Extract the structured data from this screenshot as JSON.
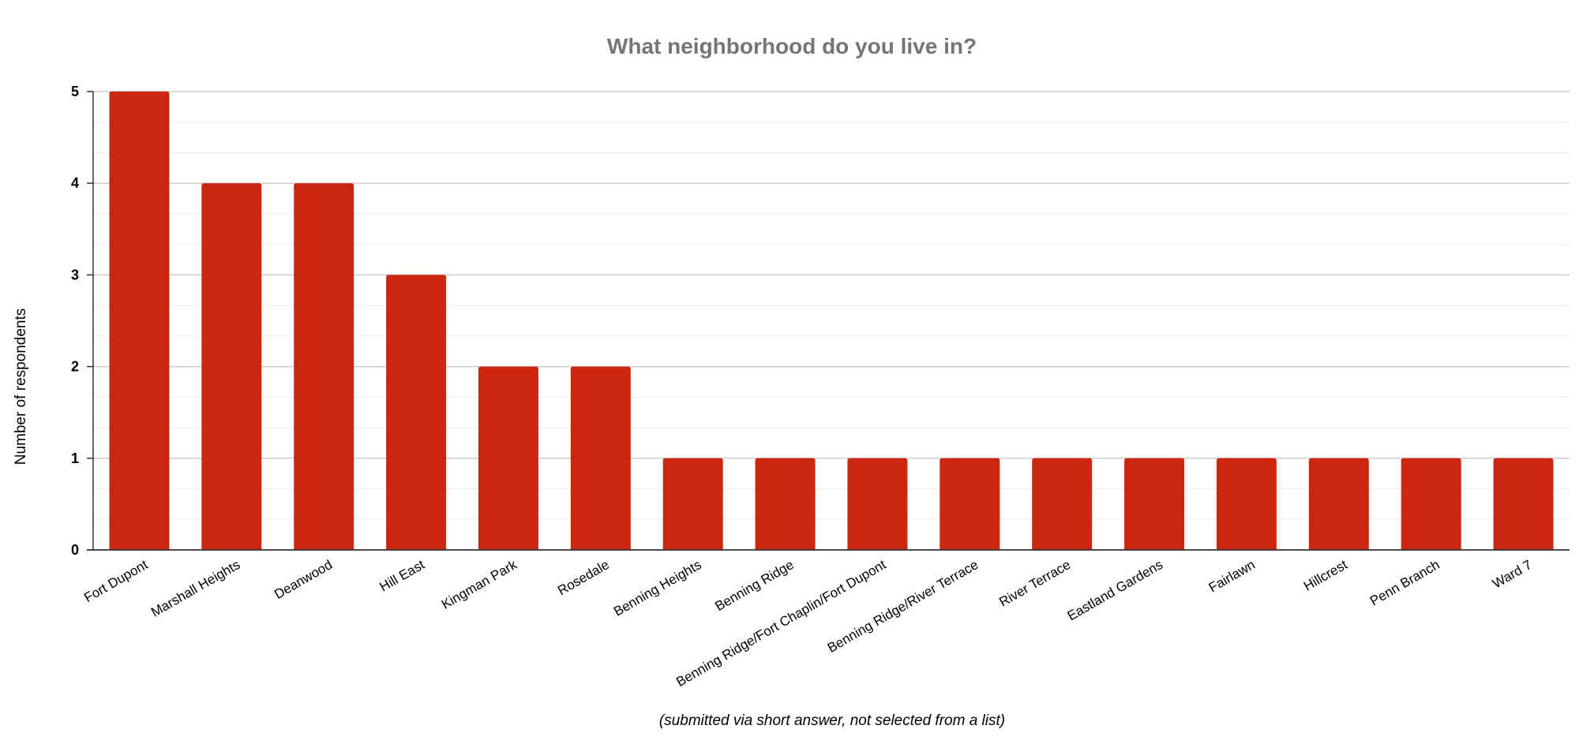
{
  "chart_data": {
    "type": "bar",
    "title": "What neighborhood do you live in?",
    "xlabel": "(submitted via short answer, not selected from a list)",
    "ylabel": "Number of respondents",
    "categories": [
      "Fort Dupont",
      "Marshall Heights",
      "Deanwood",
      "Hill East",
      "Kingman Park",
      "Rosedale",
      "Benning Heights",
      "Benning Ridge",
      "Benning Ridge/Fort Chaplin/Fort Dupont",
      "Benning Ridge/River Terrace",
      "River Terrace",
      "Eastland Gardens",
      "Fairlawn",
      "Hillcrest",
      "Penn Branch",
      "Ward 7"
    ],
    "values": [
      5,
      4,
      4,
      3,
      2,
      2,
      1,
      1,
      1,
      1,
      1,
      1,
      1,
      1,
      1,
      1
    ],
    "ylim": [
      0,
      5
    ],
    "yticks": [
      "0",
      "1",
      "2",
      "3",
      "4",
      "5"
    ],
    "grid": true,
    "legend": "none",
    "colors": {
      "bar": "#cc2611",
      "title": "#757575",
      "major_grid": "#cccccc",
      "minor_grid": "#ebebeb",
      "axis": "#333333",
      "text": "#000000"
    }
  }
}
